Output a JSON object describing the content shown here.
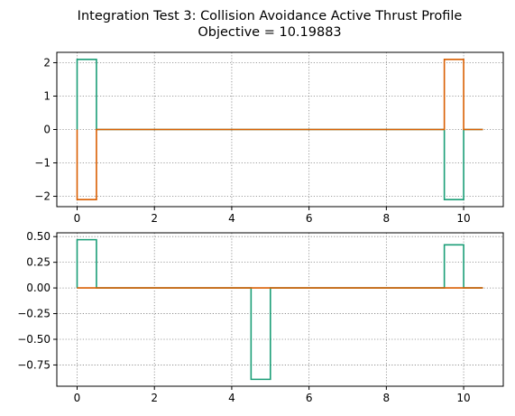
{
  "figure": {
    "title_line1": "Integration Test 3: Collision Avoidance Active Thrust Profile",
    "title_line2": "Objective = 10.19883"
  },
  "chart_data": [
    {
      "type": "line",
      "title": "",
      "xlabel": "",
      "ylabel": "",
      "xlim": [
        -0.525,
        11.025
      ],
      "ylim": [
        -2.31,
        2.31
      ],
      "grid": true,
      "xticks": [
        0,
        2,
        4,
        6,
        8,
        10
      ],
      "xtick_labels": [
        "0",
        "2",
        "4",
        "6",
        "8",
        "10"
      ],
      "yticks": [
        2,
        1,
        0,
        -1,
        -2
      ],
      "ytick_labels": [
        "2",
        "1",
        "0",
        "−1",
        "−2"
      ],
      "series": [
        {
          "color": "#1b9e77",
          "x": [
            0,
            0,
            0.5,
            0.5,
            9.5,
            9.5,
            10,
            10,
            10.5
          ],
          "y": [
            0,
            2.1,
            2.1,
            0,
            0,
            -2.1,
            -2.1,
            0,
            0
          ]
        },
        {
          "color": "#d95f02",
          "x": [
            0,
            0,
            0.5,
            0.5,
            9.5,
            9.5,
            10,
            10,
            10.5
          ],
          "y": [
            0,
            -2.1,
            -2.1,
            0,
            0,
            2.1,
            2.1,
            0,
            0
          ]
        }
      ]
    },
    {
      "type": "line",
      "title": "",
      "xlabel": "",
      "ylabel": "",
      "xlim": [
        -0.525,
        11.025
      ],
      "ylim": [
        -0.957,
        0.537
      ],
      "grid": true,
      "xticks": [
        0,
        2,
        4,
        6,
        8,
        10
      ],
      "xtick_labels": [
        "0",
        "2",
        "4",
        "6",
        "8",
        "10"
      ],
      "yticks": [
        0.5,
        0.25,
        0,
        -0.25,
        -0.5,
        -0.75
      ],
      "ytick_labels": [
        "0.50",
        "0.25",
        "0.00",
        "−0.25",
        "−0.50",
        "−0.75"
      ],
      "series": [
        {
          "color": "#1b9e77",
          "x": [
            0,
            0,
            0.5,
            0.5,
            4.5,
            4.5,
            5,
            5,
            9.5,
            9.5,
            10,
            10,
            10.5
          ],
          "y": [
            0,
            0.47,
            0.47,
            0,
            0,
            -0.89,
            -0.89,
            0,
            0,
            0.42,
            0.42,
            0,
            0
          ]
        },
        {
          "color": "#d95f02",
          "x": [
            0,
            10.5
          ],
          "y": [
            0,
            0
          ]
        }
      ]
    }
  ]
}
